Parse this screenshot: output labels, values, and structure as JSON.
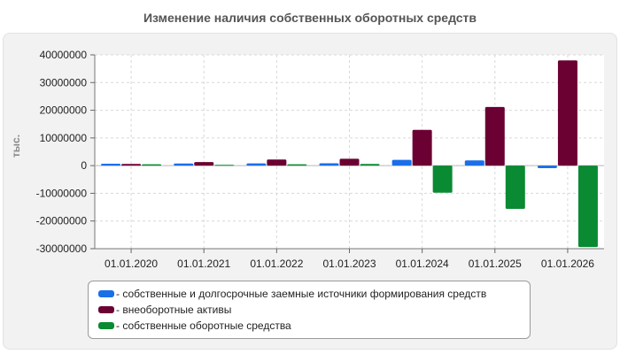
{
  "title": "Изменение наличия собственных оборотных средств",
  "chart_data": {
    "type": "bar",
    "ylabel": "тыс.",
    "xlabel": "",
    "ylim": [
      -30000000,
      40000000
    ],
    "yticks": [
      40000000,
      30000000,
      20000000,
      10000000,
      0,
      -10000000,
      -20000000,
      -30000000
    ],
    "categories": [
      "01.01.2020",
      "01.01.2021",
      "01.01.2022",
      "01.01.2023",
      "01.01.2024",
      "01.01.2025",
      "01.01.2026"
    ],
    "series": [
      {
        "name": "- собственные и долгосрочные заемные источники формирования средств",
        "color": "#1a6fe8",
        "values": [
          700000,
          750000,
          800000,
          850000,
          2100000,
          1900000,
          -900000
        ]
      },
      {
        "name": "- внеоборотные активы",
        "color": "#6b0033",
        "values": [
          600000,
          1300000,
          2200000,
          2500000,
          12900000,
          21200000,
          38000000
        ]
      },
      {
        "name": "- собственные оборотные средства",
        "color": "#0a8a32",
        "values": [
          500000,
          300000,
          500000,
          600000,
          -9800000,
          -15600000,
          -29400000
        ]
      }
    ],
    "grid": true,
    "legend_position": "bottom"
  }
}
